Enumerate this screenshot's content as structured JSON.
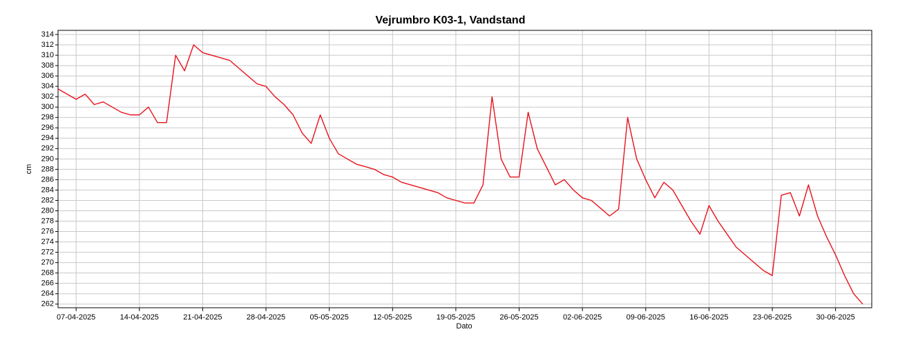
{
  "chart_data": {
    "type": "line",
    "title": "Vejrumbro K03-1, Vandstand",
    "xlabel": "Dato",
    "ylabel": "cm",
    "x": [
      "2025-04-05",
      "2025-04-06",
      "2025-04-07",
      "2025-04-08",
      "2025-04-09",
      "2025-04-10",
      "2025-04-11",
      "2025-04-12",
      "2025-04-13",
      "2025-04-14",
      "2025-04-15",
      "2025-04-16",
      "2025-04-17",
      "2025-04-18",
      "2025-04-19",
      "2025-04-20",
      "2025-04-21",
      "2025-04-22",
      "2025-04-23",
      "2025-04-24",
      "2025-04-25",
      "2025-04-26",
      "2025-04-27",
      "2025-04-28",
      "2025-04-29",
      "2025-04-30",
      "2025-05-01",
      "2025-05-02",
      "2025-05-03",
      "2025-05-04",
      "2025-05-05",
      "2025-05-06",
      "2025-05-07",
      "2025-05-08",
      "2025-05-09",
      "2025-05-10",
      "2025-05-11",
      "2025-05-12",
      "2025-05-13",
      "2025-05-14",
      "2025-05-15",
      "2025-05-16",
      "2025-05-17",
      "2025-05-18",
      "2025-05-19",
      "2025-05-20",
      "2025-05-21",
      "2025-05-22",
      "2025-05-23",
      "2025-05-24",
      "2025-05-25",
      "2025-05-26",
      "2025-05-27",
      "2025-05-28",
      "2025-05-29",
      "2025-05-30",
      "2025-05-31",
      "2025-06-01",
      "2025-06-02",
      "2025-06-03",
      "2025-06-04",
      "2025-06-05",
      "2025-06-06",
      "2025-06-07",
      "2025-06-08",
      "2025-06-09",
      "2025-06-10",
      "2025-06-11",
      "2025-06-12",
      "2025-06-13",
      "2025-06-14",
      "2025-06-15",
      "2025-06-16",
      "2025-06-17",
      "2025-06-18",
      "2025-06-19",
      "2025-06-20",
      "2025-06-21",
      "2025-06-22",
      "2025-06-23",
      "2025-06-24",
      "2025-06-25",
      "2025-06-26",
      "2025-06-27",
      "2025-06-28",
      "2025-06-29",
      "2025-06-30",
      "2025-07-01",
      "2025-07-02",
      "2025-07-03"
    ],
    "values": [
      303.5,
      302.5,
      301.5,
      302.5,
      300.5,
      301,
      300,
      299,
      298.5,
      298.5,
      300,
      297,
      297,
      310,
      307,
      312,
      310.5,
      310,
      309.5,
      309,
      307.5,
      306,
      304.5,
      304,
      302,
      300.5,
      298.5,
      295,
      293,
      298.5,
      294,
      291,
      290,
      289,
      288.5,
      288,
      287,
      286.5,
      285.5,
      285,
      284.5,
      284,
      283.5,
      282.5,
      282,
      281.5,
      281.5,
      285,
      302,
      290,
      286.5,
      286.5,
      299,
      292,
      288.5,
      285,
      286,
      284,
      282.5,
      282,
      280.5,
      279,
      280.3,
      298,
      290,
      286,
      282.5,
      285.5,
      284,
      281,
      278,
      275.5,
      281,
      278,
      275.5,
      273,
      271.5,
      270,
      268.5,
      267.5,
      283,
      283.5,
      279,
      285,
      279,
      275,
      271.5,
      267.5,
      264,
      262
    ],
    "color": "#e8101a",
    "xlim": [
      "2025-04-05",
      "2025-07-04"
    ],
    "xticks": [
      {
        "value": "2025-04-07",
        "label": "07-04-2025"
      },
      {
        "value": "2025-04-14",
        "label": "14-04-2025"
      },
      {
        "value": "2025-04-21",
        "label": "21-04-2025"
      },
      {
        "value": "2025-04-28",
        "label": "28-04-2025"
      },
      {
        "value": "2025-05-05",
        "label": "05-05-2025"
      },
      {
        "value": "2025-05-12",
        "label": "12-05-2025"
      },
      {
        "value": "2025-05-19",
        "label": "19-05-2025"
      },
      {
        "value": "2025-05-26",
        "label": "26-05-2025"
      },
      {
        "value": "2025-06-02",
        "label": "02-06-2025"
      },
      {
        "value": "2025-06-09",
        "label": "09-06-2025"
      },
      {
        "value": "2025-06-16",
        "label": "16-06-2025"
      },
      {
        "value": "2025-06-23",
        "label": "23-06-2025"
      },
      {
        "value": "2025-06-30",
        "label": "30-06-2025"
      }
    ],
    "ylim": [
      261.3,
      314.8
    ],
    "yticks": [
      262,
      264,
      266,
      268,
      270,
      272,
      274,
      276,
      278,
      280,
      282,
      284,
      286,
      288,
      290,
      292,
      294,
      296,
      298,
      300,
      302,
      304,
      306,
      308,
      310,
      312,
      314
    ],
    "grid": true
  }
}
